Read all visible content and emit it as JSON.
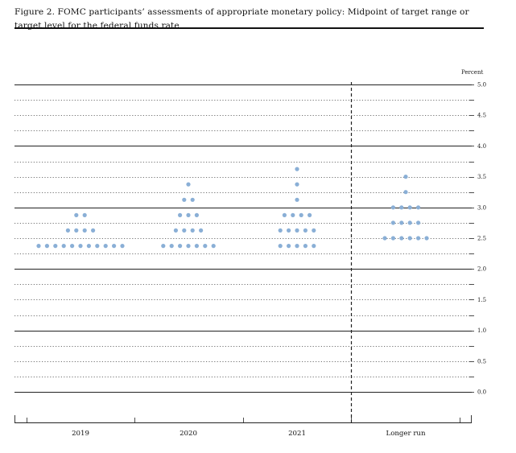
{
  "title": "Figure 2. FOMC participants’ assessments of appropriate monetary policy: Midpoint of target range or target level for the federal funds rate",
  "chart_data": {
    "type": "scatter",
    "subtype": "dot-plot",
    "title": "Figure 2. FOMC participants’ assessments of appropriate monetary policy: Midpoint of target range or target level for the federal funds rate",
    "ylabel": "Percent",
    "ylim": [
      0,
      5
    ],
    "yticks": [
      "5.0",
      "4.5",
      "4.0",
      "3.5",
      "3.0",
      "2.5",
      "2.0",
      "1.5",
      "1.0",
      "0.5",
      "0.0"
    ],
    "ytick_values": [
      5.0,
      4.5,
      4.0,
      3.5,
      3.0,
      2.5,
      2.0,
      1.5,
      1.0,
      0.5,
      0.0
    ],
    "categories": [
      "2019",
      "2020",
      "2021",
      "Longer run"
    ],
    "dot_color": "#8aafd6",
    "grid": true,
    "columns": [
      {
        "category": "2019",
        "points": [
          {
            "value": 2.375,
            "count": 11
          },
          {
            "value": 2.625,
            "count": 4
          },
          {
            "value": 2.875,
            "count": 2
          }
        ]
      },
      {
        "category": "2020",
        "points": [
          {
            "value": 2.375,
            "count": 7
          },
          {
            "value": 2.625,
            "count": 4
          },
          {
            "value": 2.875,
            "count": 3
          },
          {
            "value": 3.125,
            "count": 2
          },
          {
            "value": 3.375,
            "count": 1
          }
        ]
      },
      {
        "category": "2021",
        "points": [
          {
            "value": 2.375,
            "count": 5
          },
          {
            "value": 2.625,
            "count": 5
          },
          {
            "value": 2.875,
            "count": 4
          },
          {
            "value": 3.125,
            "count": 1
          },
          {
            "value": 3.375,
            "count": 1
          },
          {
            "value": 3.625,
            "count": 1
          }
        ]
      },
      {
        "category": "Longer run",
        "points": [
          {
            "value": 2.5,
            "count": 6
          },
          {
            "value": 2.75,
            "count": 4
          },
          {
            "value": 3.0,
            "count": 4
          },
          {
            "value": 3.25,
            "count": 1
          },
          {
            "value": 3.5,
            "count": 1
          }
        ]
      }
    ]
  }
}
